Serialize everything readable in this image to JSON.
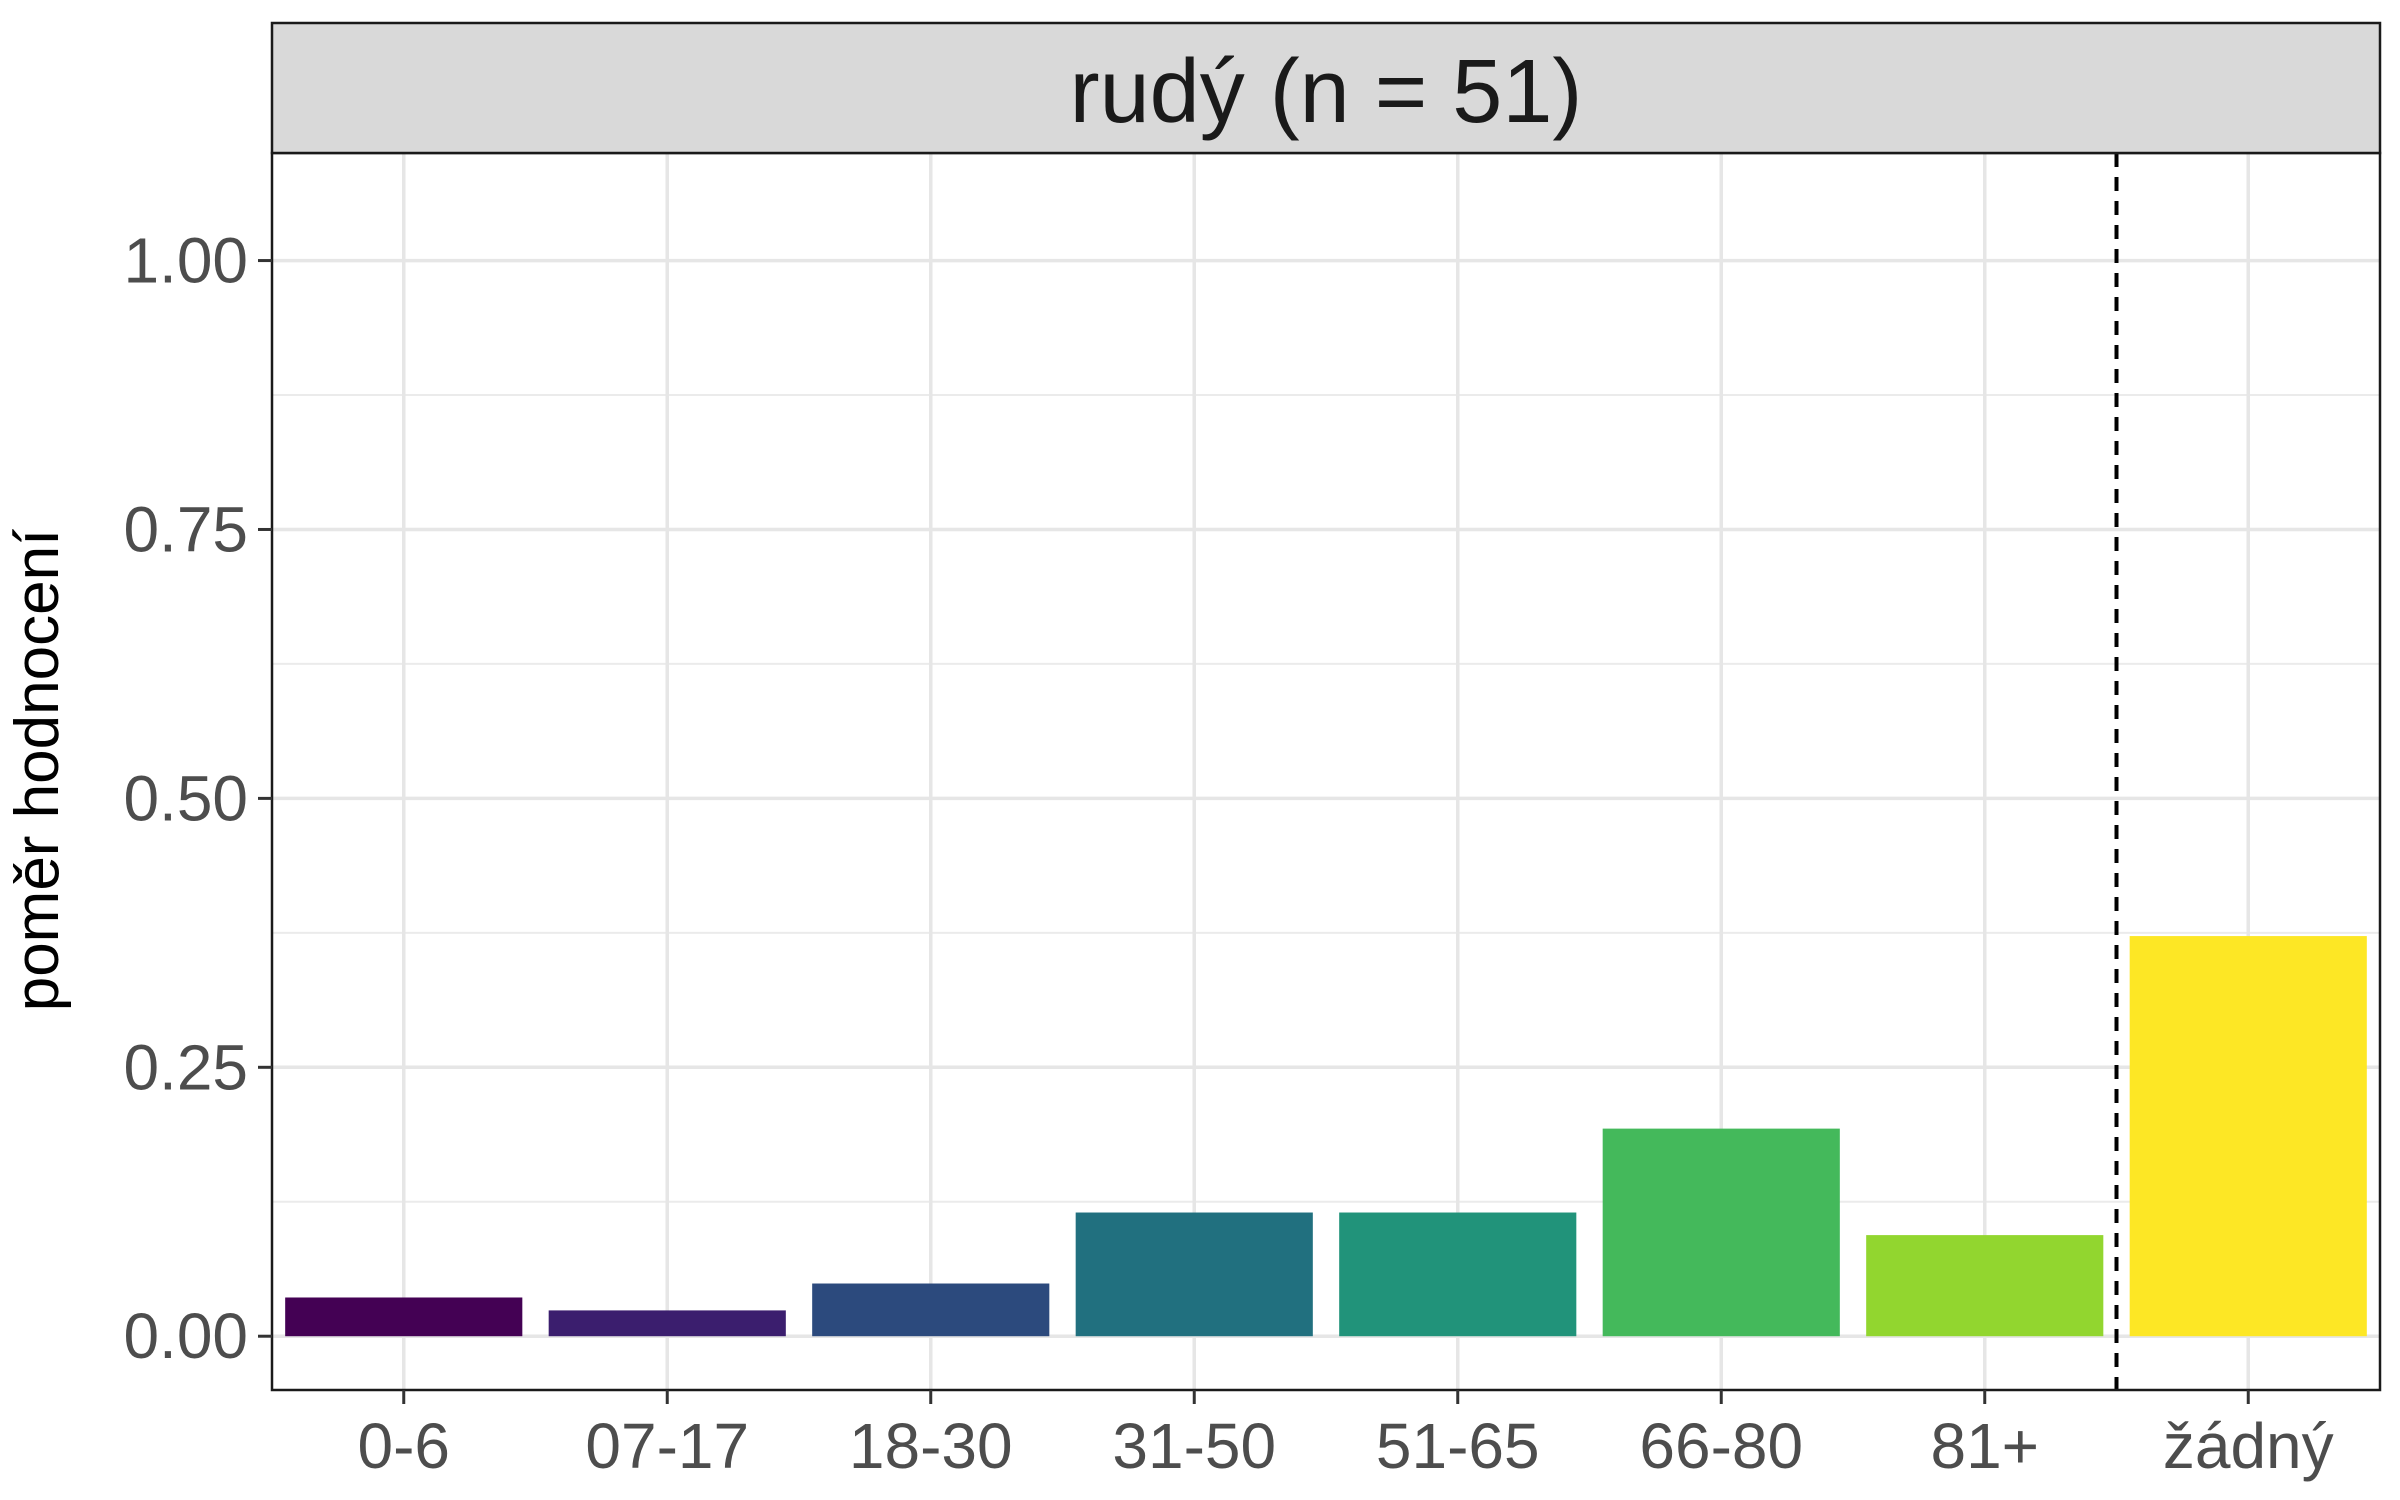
{
  "chart_data": {
    "type": "bar",
    "title": "rudý (n = 51)",
    "xlabel": "",
    "ylabel": "poměr hodnocení",
    "categories": [
      "0-6",
      "07-17",
      "18-30",
      "31-50",
      "51-65",
      "66-80",
      "81+",
      "žádný"
    ],
    "values": [
      0.036,
      0.024,
      0.049,
      0.115,
      0.115,
      0.193,
      0.094,
      0.372
    ],
    "colors": [
      "#440154",
      "#3B1E6E",
      "#2C4A7D",
      "#21707F",
      "#21937A",
      "#44B95B",
      "#92D62F",
      "#FDE725"
    ],
    "ylim": [
      -0.05,
      1.1
    ],
    "yticks": [
      0.0,
      0.25,
      0.5,
      0.75,
      1.0
    ],
    "ytick_labels": [
      "0.00",
      "0.25",
      "0.50",
      "0.75",
      "1.00"
    ],
    "reference_line": {
      "between": [
        "81+",
        "žádný"
      ],
      "style": "dashed"
    },
    "grid": true,
    "legend": "none"
  }
}
